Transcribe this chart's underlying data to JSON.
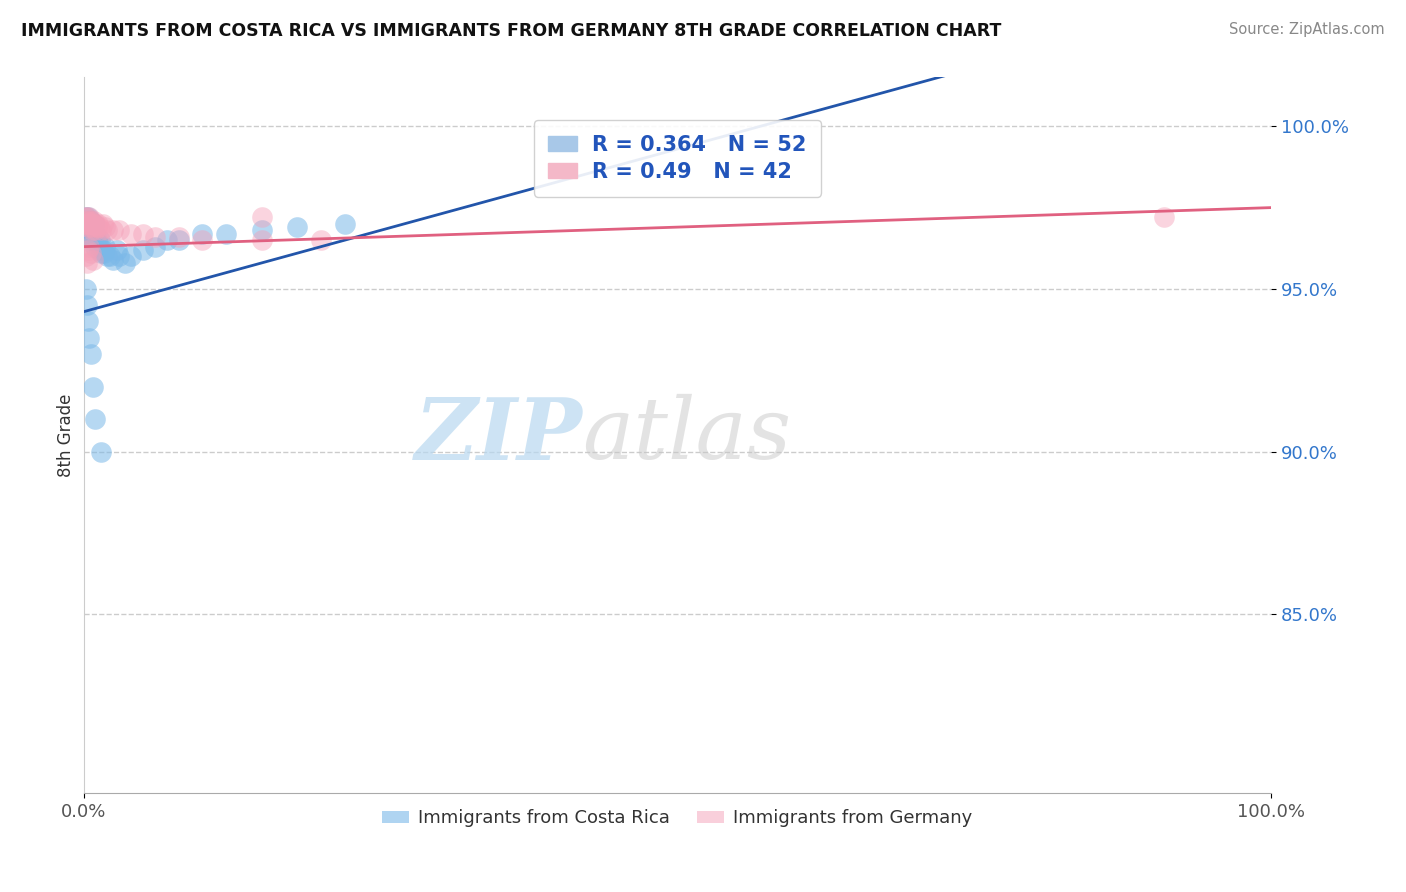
{
  "title": "IMMIGRANTS FROM COSTA RICA VS IMMIGRANTS FROM GERMANY 8TH GRADE CORRELATION CHART",
  "source": "Source: ZipAtlas.com",
  "ylabel": "8th Grade",
  "legend_label1": "Immigrants from Costa Rica",
  "legend_label2": "Immigrants from Germany",
  "R1": 0.364,
  "N1": 52,
  "R2": 0.49,
  "N2": 42,
  "color_blue": "#7ab8e8",
  "color_pink": "#f4a0b8",
  "color_blue_line": "#2255aa",
  "color_pink_line": "#e06080",
  "watermark_zip": "ZIP",
  "watermark_atlas": "atlas",
  "ytick_labels": [
    "100.0%",
    "95.0%",
    "90.0%",
    "85.0%"
  ],
  "ytick_values": [
    1.0,
    0.95,
    0.9,
    0.85
  ],
  "xlim": [
    0.0,
    1.0
  ],
  "ylim": [
    0.795,
    1.015
  ],
  "cr_x": [
    0.001,
    0.002,
    0.002,
    0.003,
    0.003,
    0.003,
    0.004,
    0.004,
    0.005,
    0.005,
    0.005,
    0.006,
    0.006,
    0.007,
    0.007,
    0.008,
    0.008,
    0.009,
    0.01,
    0.01,
    0.011,
    0.012,
    0.013,
    0.014,
    0.015,
    0.016,
    0.017,
    0.018,
    0.02,
    0.022,
    0.025,
    0.028,
    0.03,
    0.035,
    0.04,
    0.05,
    0.06,
    0.07,
    0.08,
    0.1,
    0.12,
    0.15,
    0.18,
    0.22,
    0.002,
    0.003,
    0.004,
    0.005,
    0.006,
    0.008,
    0.01,
    0.015
  ],
  "cr_y": [
    0.97,
    0.972,
    0.968,
    0.971,
    0.969,
    0.966,
    0.97,
    0.972,
    0.97,
    0.968,
    0.966,
    0.971,
    0.965,
    0.97,
    0.968,
    0.969,
    0.965,
    0.97,
    0.967,
    0.963,
    0.965,
    0.964,
    0.962,
    0.965,
    0.961,
    0.962,
    0.961,
    0.963,
    0.96,
    0.96,
    0.959,
    0.962,
    0.96,
    0.958,
    0.96,
    0.962,
    0.963,
    0.965,
    0.965,
    0.967,
    0.967,
    0.968,
    0.969,
    0.97,
    0.95,
    0.945,
    0.94,
    0.935,
    0.93,
    0.92,
    0.91,
    0.9
  ],
  "ger_x": [
    0.001,
    0.002,
    0.002,
    0.003,
    0.003,
    0.004,
    0.004,
    0.005,
    0.005,
    0.006,
    0.006,
    0.007,
    0.007,
    0.008,
    0.008,
    0.009,
    0.01,
    0.01,
    0.011,
    0.012,
    0.013,
    0.015,
    0.016,
    0.018,
    0.02,
    0.025,
    0.03,
    0.04,
    0.05,
    0.06,
    0.08,
    0.1,
    0.15,
    0.2,
    0.002,
    0.003,
    0.004,
    0.005,
    0.006,
    0.008,
    0.15,
    0.91
  ],
  "ger_y": [
    0.972,
    0.971,
    0.97,
    0.972,
    0.97,
    0.971,
    0.969,
    0.972,
    0.97,
    0.971,
    0.969,
    0.97,
    0.968,
    0.97,
    0.969,
    0.971,
    0.97,
    0.968,
    0.969,
    0.97,
    0.969,
    0.968,
    0.97,
    0.969,
    0.968,
    0.968,
    0.968,
    0.967,
    0.967,
    0.966,
    0.966,
    0.965,
    0.965,
    0.965,
    0.96,
    0.958,
    0.962,
    0.963,
    0.961,
    0.959,
    0.972,
    0.972
  ]
}
